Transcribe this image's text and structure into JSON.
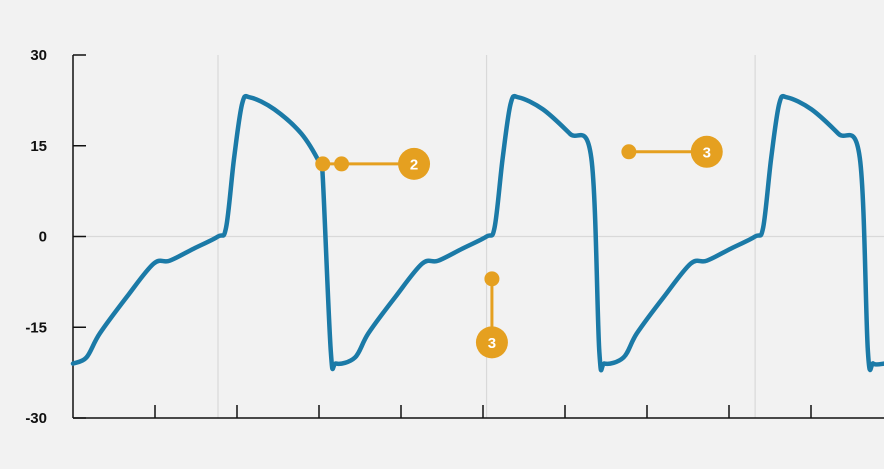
{
  "chart_data": {
    "type": "line",
    "title": "",
    "xlabel": "",
    "ylabel": "",
    "ylim": [
      -30,
      30
    ],
    "y_ticks": [
      "30",
      "15",
      "0",
      "-15",
      "-30"
    ],
    "x_ticks_count": 10,
    "grid": "vertical lines at each cycle start, horizontal line at 0",
    "series_color": "#1b7aa7",
    "annotation_color": "#e5a020",
    "series": [
      {
        "values": [
          [
            0.0,
            -21.0
          ],
          [
            0.05,
            -20.0
          ],
          [
            0.1,
            -16.0
          ],
          [
            0.2,
            -10.0
          ],
          [
            0.3,
            -4.5
          ],
          [
            0.36,
            -4.0
          ],
          [
            0.45,
            -2.0
          ],
          [
            0.54,
            0.0
          ],
          [
            0.57,
            1.5
          ],
          [
            0.6,
            13.0
          ],
          [
            0.63,
            22.0
          ],
          [
            0.66,
            23.0
          ],
          [
            0.75,
            21.0
          ],
          [
            0.85,
            17.0
          ],
          [
            0.92,
            12.0
          ],
          [
            0.93,
            10.0
          ],
          [
            0.96,
            -19.0
          ],
          [
            0.98,
            -21.0
          ],
          [
            1.05,
            -20.0
          ],
          [
            1.1,
            -16.0
          ],
          [
            1.2,
            -10.0
          ],
          [
            1.3,
            -4.5
          ],
          [
            1.36,
            -4.0
          ],
          [
            1.45,
            -2.0
          ],
          [
            1.54,
            0.0
          ],
          [
            1.57,
            1.5
          ],
          [
            1.6,
            13.0
          ],
          [
            1.63,
            22.0
          ],
          [
            1.66,
            23.0
          ],
          [
            1.75,
            21.0
          ],
          [
            1.85,
            17.0
          ],
          [
            1.93,
            13.0
          ],
          [
            1.96,
            -19.0
          ],
          [
            1.98,
            -21.0
          ],
          [
            2.05,
            -20.0
          ],
          [
            2.1,
            -16.0
          ],
          [
            2.2,
            -10.0
          ],
          [
            2.3,
            -4.5
          ],
          [
            2.36,
            -4.0
          ],
          [
            2.45,
            -2.0
          ],
          [
            2.54,
            0.0
          ],
          [
            2.57,
            1.5
          ],
          [
            2.6,
            13.0
          ],
          [
            2.63,
            22.0
          ],
          [
            2.66,
            23.0
          ],
          [
            2.75,
            21.0
          ],
          [
            2.85,
            17.0
          ],
          [
            2.93,
            13.0
          ],
          [
            2.96,
            -19.0
          ],
          [
            2.98,
            -21.0
          ],
          [
            3.02,
            -21.0
          ]
        ]
      }
    ],
    "annotations": [
      {
        "label": "2",
        "points": [
          [
            0.93,
            12.0
          ],
          [
            1.0,
            12.0
          ]
        ],
        "badge_at": [
          1.27,
          12.0
        ]
      },
      {
        "label": "3",
        "points": [
          [
            1.56,
            -7.0
          ]
        ],
        "badge_at": [
          1.56,
          -17.5
        ]
      },
      {
        "label": "3",
        "points": [
          [
            2.07,
            14.0
          ]
        ],
        "badge_at": [
          2.36,
          14.0
        ]
      }
    ]
  }
}
